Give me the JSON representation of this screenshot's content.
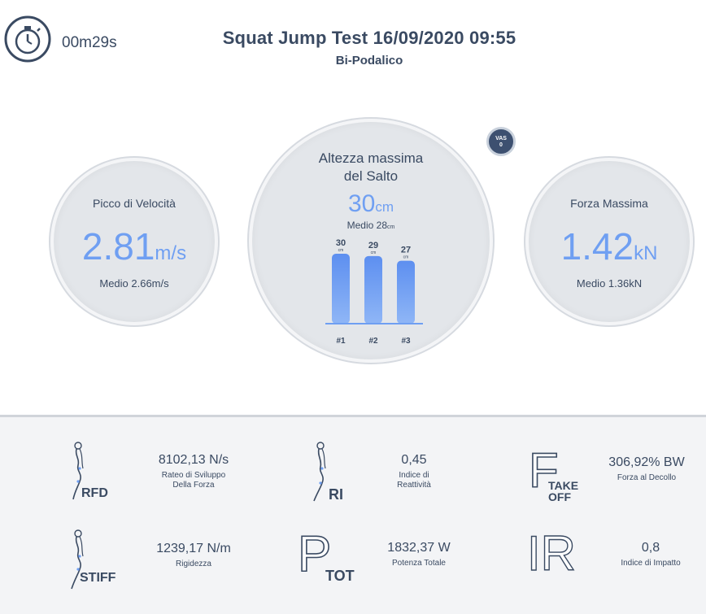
{
  "timer": {
    "icon": "stopwatch-icon",
    "elapsed": "00m29s"
  },
  "header": {
    "title": "Squat Jump Test 16/09/2020 09:55",
    "subtitle": "Bi-Podalico"
  },
  "badge": {
    "line1": "VAS",
    "line2": "0"
  },
  "velocity": {
    "label": "Picco di Velocità",
    "value": "2.81",
    "unit": "m/s",
    "medio": "Medio 2.66m/s"
  },
  "height": {
    "label_line1": "Altezza massima",
    "label_line2": "del Salto",
    "value": "30",
    "unit": "cm",
    "medio_prefix": "Medio 28",
    "medio_unit": "cm"
  },
  "force": {
    "label": "Forza Massima",
    "value": "1.42",
    "unit": "kN",
    "medio": "Medio 1.36kN"
  },
  "chart_data": {
    "type": "bar",
    "categories": [
      "#1",
      "#2",
      "#3"
    ],
    "values": [
      30,
      29,
      27
    ],
    "unit": "cm",
    "color": "#6f9ff2"
  },
  "metrics": {
    "rfd": {
      "symbol": "RFD",
      "value": "8102,13 N/s",
      "desc_line1": "Rateo di Sviluppo",
      "desc_line2": "Della Forza"
    },
    "ri": {
      "symbol": "RI",
      "value": "0,45",
      "desc_line1": "Indice di",
      "desc_line2": "Reattività"
    },
    "takeoff": {
      "symbol_big": "F",
      "symbol_line1": "TAKE",
      "symbol_line2": "OFF",
      "value": "306,92% BW",
      "desc_line1": "Forza al Decollo"
    },
    "stiff": {
      "symbol": "STIFF",
      "value": "1239,17 N/m",
      "desc_line1": "Rigidezza"
    },
    "ptot": {
      "symbol_big": "P",
      "symbol_sub": "TOT",
      "value": "1832,37 W",
      "desc_line1": "Potenza Totale"
    },
    "ir": {
      "symbol_big": "IR",
      "value": "0,8",
      "desc_line1": "Indice di Impatto"
    }
  }
}
